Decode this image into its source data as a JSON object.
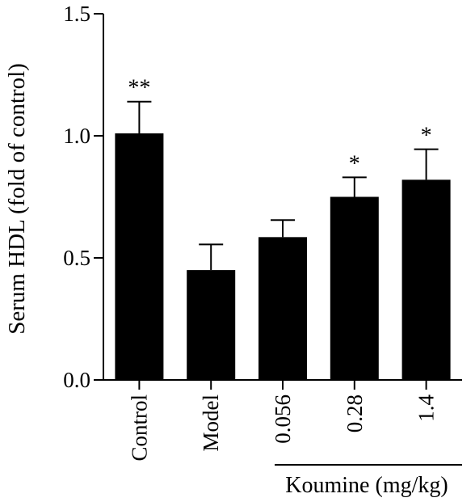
{
  "chart_data": {
    "type": "bar",
    "ylabel": "Serum HDL (fold of control)",
    "ylim": [
      0,
      1.5
    ],
    "yticks": [
      "0.0",
      "0.5",
      "1.0",
      "1.5"
    ],
    "categories": [
      "Control",
      "Model",
      "0.056",
      "0.28",
      "1.4"
    ],
    "values": [
      1.01,
      0.45,
      0.585,
      0.75,
      0.82
    ],
    "errors": [
      0.13,
      0.105,
      0.07,
      0.08,
      0.125
    ],
    "significance": [
      "**",
      "",
      "",
      "*",
      "*"
    ],
    "group_label": "Koumine (mg/kg)",
    "bar_color": "#000000",
    "grid": false,
    "legend": "none"
  }
}
